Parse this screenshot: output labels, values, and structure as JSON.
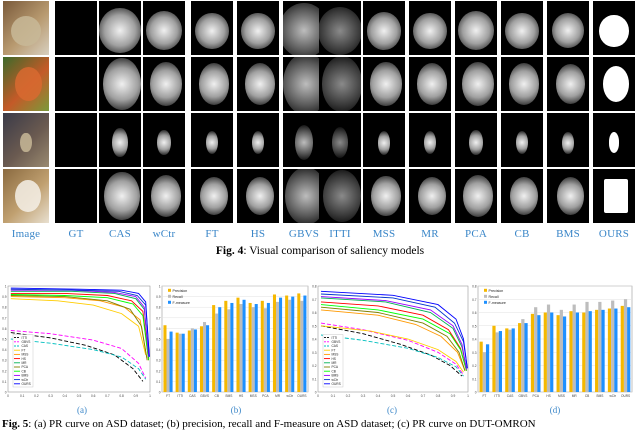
{
  "figure4": {
    "columns": [
      "Image",
      "GT",
      "CAS",
      "wCtr",
      "FT",
      "HS",
      "GBVS",
      "ITTI",
      "MSS",
      "MR",
      "PCA",
      "CB",
      "BMS",
      "OURS"
    ],
    "caption_label": "Fig. 4",
    "caption_text": ": Visual comparison of saliency models"
  },
  "figure5": {
    "subfigure_labels": [
      "(a)",
      "(b)",
      "(c)",
      "(d)"
    ],
    "caption_label": "Fig. 5",
    "caption_text": ": (a) PR curve on ASD dataset; (b) precision, recall and F-measure on ASD dataset; (c) PR curve on DUT-OMRON"
  },
  "chart_data": [
    {
      "type": "line",
      "id": "a",
      "x_ticks": [
        "0",
        "0.1",
        "0.2",
        "0.3",
        "0.4",
        "0.5",
        "0.6",
        "0.7",
        "0.8",
        "0.9",
        "1"
      ],
      "y_ticks": [
        "0",
        "0.1",
        "0.2",
        "0.3",
        "0.4",
        "0.5",
        "0.6",
        "0.7",
        "0.8",
        "0.9",
        "1"
      ],
      "xlim": [
        0,
        1
      ],
      "ylim": [
        0,
        1
      ],
      "legend_position": "bottom-left",
      "series": [
        {
          "name": "ITTI",
          "color": "#000000",
          "dash": "4,2",
          "values": [
            [
              0.02,
              0.56
            ],
            [
              0.3,
              0.51
            ],
            [
              0.55,
              0.44
            ],
            [
              0.75,
              0.35
            ],
            [
              0.88,
              0.22
            ],
            [
              0.95,
              0.1
            ]
          ]
        },
        {
          "name": "GBVS",
          "color": "#ff00ff",
          "dash": "4,2",
          "values": [
            [
              0.02,
              0.58
            ],
            [
              0.3,
              0.55
            ],
            [
              0.6,
              0.49
            ],
            [
              0.8,
              0.41
            ],
            [
              0.92,
              0.27
            ],
            [
              0.97,
              0.13
            ]
          ]
        },
        {
          "name": "CAS",
          "color": "#00bfbf",
          "dash": "4,2",
          "values": [
            [
              0.02,
              0.5
            ],
            [
              0.3,
              0.46
            ],
            [
              0.6,
              0.4
            ],
            [
              0.8,
              0.33
            ],
            [
              0.92,
              0.22
            ],
            [
              0.97,
              0.12
            ]
          ]
        },
        {
          "name": "FT",
          "color": "#ffcc00",
          "dash": "",
          "values": [
            [
              0.02,
              0.88
            ],
            [
              0.35,
              0.86
            ],
            [
              0.6,
              0.82
            ],
            [
              0.8,
              0.74
            ],
            [
              0.92,
              0.62
            ],
            [
              0.97,
              0.35
            ]
          ]
        },
        {
          "name": "MSS",
          "color": "#ff9900",
          "dash": "",
          "values": [
            [
              0.02,
              0.9
            ],
            [
              0.4,
              0.89
            ],
            [
              0.65,
              0.86
            ],
            [
              0.82,
              0.8
            ],
            [
              0.93,
              0.68
            ],
            [
              0.98,
              0.3
            ]
          ]
        },
        {
          "name": "HS",
          "color": "#ff0000",
          "dash": "",
          "values": [
            [
              0.02,
              0.93
            ],
            [
              0.4,
              0.93
            ],
            [
              0.7,
              0.91
            ],
            [
              0.87,
              0.86
            ],
            [
              0.95,
              0.76
            ],
            [
              0.99,
              0.3
            ]
          ]
        },
        {
          "name": "MR",
          "color": "#00b050",
          "dash": "",
          "values": [
            [
              0.02,
              0.95
            ],
            [
              0.45,
              0.95
            ],
            [
              0.75,
              0.93
            ],
            [
              0.9,
              0.88
            ],
            [
              0.96,
              0.78
            ],
            [
              0.99,
              0.32
            ]
          ]
        },
        {
          "name": "PCA",
          "color": "#7f7f00",
          "dash": "",
          "values": [
            [
              0.02,
              0.91
            ],
            [
              0.4,
              0.9
            ],
            [
              0.7,
              0.86
            ],
            [
              0.86,
              0.78
            ],
            [
              0.94,
              0.62
            ],
            [
              0.98,
              0.3
            ]
          ]
        },
        {
          "name": "CB",
          "color": "#00ff00",
          "dash": "",
          "values": [
            [
              0.02,
              0.92
            ],
            [
              0.4,
              0.91
            ],
            [
              0.7,
              0.89
            ],
            [
              0.88,
              0.83
            ],
            [
              0.95,
              0.72
            ],
            [
              0.99,
              0.3
            ]
          ]
        },
        {
          "name": "BMS",
          "color": "#9900ff",
          "dash": "",
          "values": [
            [
              0.02,
              0.96
            ],
            [
              0.45,
              0.96
            ],
            [
              0.75,
              0.94
            ],
            [
              0.9,
              0.9
            ],
            [
              0.96,
              0.8
            ],
            [
              0.99,
              0.33
            ]
          ]
        },
        {
          "name": "wCtr",
          "color": "#0033cc",
          "dash": "",
          "values": [
            [
              0.02,
              0.97
            ],
            [
              0.5,
              0.96
            ],
            [
              0.78,
              0.95
            ],
            [
              0.91,
              0.91
            ],
            [
              0.97,
              0.82
            ],
            [
              0.995,
              0.33
            ]
          ]
        },
        {
          "name": "OURS",
          "color": "#0000ff",
          "dash": "",
          "values": [
            [
              0.02,
              0.98
            ],
            [
              0.5,
              0.97
            ],
            [
              0.8,
              0.96
            ],
            [
              0.92,
              0.93
            ],
            [
              0.97,
              0.85
            ],
            [
              0.995,
              0.34
            ]
          ]
        }
      ]
    },
    {
      "type": "bar",
      "id": "b",
      "categories": [
        "FT",
        "ITTI",
        "CAS",
        "GBVS",
        "CB",
        "BMS",
        "HS",
        "MSS",
        "PCA",
        "MR",
        "wCtr",
        "OURS"
      ],
      "ylim": [
        0,
        1
      ],
      "y_ticks": [
        "0",
        "0.1",
        "0.2",
        "0.3",
        "0.4",
        "0.5",
        "0.6",
        "0.7",
        "0.8",
        "0.9",
        "1"
      ],
      "legend_position": "top-left",
      "series": [
        {
          "name": "Precision",
          "color": "#f5b800",
          "values": [
            0.63,
            0.56,
            0.58,
            0.62,
            0.82,
            0.86,
            0.89,
            0.84,
            0.86,
            0.92,
            0.91,
            0.93
          ]
        },
        {
          "name": "Recall",
          "color": "#bdbdbd",
          "values": [
            0.5,
            0.55,
            0.6,
            0.66,
            0.74,
            0.78,
            0.83,
            0.8,
            0.79,
            0.85,
            0.87,
            0.86
          ]
        },
        {
          "name": "F-measure",
          "color": "#1e90ff",
          "values": [
            0.57,
            0.55,
            0.59,
            0.63,
            0.8,
            0.84,
            0.87,
            0.83,
            0.84,
            0.89,
            0.9,
            0.91
          ]
        }
      ]
    },
    {
      "type": "line",
      "id": "c",
      "x_ticks": [
        "0",
        "0.1",
        "0.2",
        "0.3",
        "0.4",
        "0.5",
        "0.6",
        "0.7",
        "0.8",
        "0.9",
        "1"
      ],
      "y_ticks": [
        "0",
        "0.1",
        "0.2",
        "0.3",
        "0.4",
        "0.5",
        "0.6",
        "0.7",
        "0.8"
      ],
      "xlim": [
        0,
        1
      ],
      "ylim": [
        0,
        0.8
      ],
      "legend_position": "bottom-left",
      "series": [
        {
          "name": "ITTI",
          "color": "#000000",
          "dash": "4,2",
          "values": [
            [
              0.02,
              0.5
            ],
            [
              0.3,
              0.44
            ],
            [
              0.55,
              0.36
            ],
            [
              0.75,
              0.28
            ],
            [
              0.88,
              0.2
            ],
            [
              0.96,
              0.12
            ]
          ]
        },
        {
          "name": "GBVS",
          "color": "#ff00ff",
          "dash": "4,2",
          "values": [
            [
              0.02,
              0.52
            ],
            [
              0.3,
              0.47
            ],
            [
              0.6,
              0.39
            ],
            [
              0.8,
              0.3
            ],
            [
              0.92,
              0.21
            ],
            [
              0.97,
              0.13
            ]
          ]
        },
        {
          "name": "CAS",
          "color": "#00bfbf",
          "dash": "4,2",
          "values": [
            [
              0.02,
              0.43
            ],
            [
              0.3,
              0.39
            ],
            [
              0.6,
              0.33
            ],
            [
              0.8,
              0.26
            ],
            [
              0.92,
              0.19
            ],
            [
              0.97,
              0.12
            ]
          ]
        },
        {
          "name": "FT",
          "color": "#ffcc00",
          "dash": "",
          "values": [
            [
              0.02,
              0.5
            ],
            [
              0.35,
              0.46
            ],
            [
              0.6,
              0.4
            ],
            [
              0.8,
              0.32
            ],
            [
              0.92,
              0.23
            ],
            [
              0.97,
              0.15
            ]
          ]
        },
        {
          "name": "MSS",
          "color": "#ff9900",
          "dash": "",
          "values": [
            [
              0.02,
              0.62
            ],
            [
              0.4,
              0.58
            ],
            [
              0.65,
              0.51
            ],
            [
              0.82,
              0.42
            ],
            [
              0.93,
              0.3
            ],
            [
              0.98,
              0.16
            ]
          ]
        },
        {
          "name": "HS",
          "color": "#ff0000",
          "dash": "",
          "values": [
            [
              0.02,
              0.68
            ],
            [
              0.4,
              0.65
            ],
            [
              0.7,
              0.58
            ],
            [
              0.87,
              0.47
            ],
            [
              0.95,
              0.33
            ],
            [
              0.99,
              0.16
            ]
          ]
        },
        {
          "name": "MR",
          "color": "#00b050",
          "dash": "",
          "values": [
            [
              0.02,
              0.71
            ],
            [
              0.45,
              0.68
            ],
            [
              0.75,
              0.6
            ],
            [
              0.9,
              0.48
            ],
            [
              0.96,
              0.34
            ],
            [
              0.99,
              0.17
            ]
          ]
        },
        {
          "name": "PCA",
          "color": "#7f7f00",
          "dash": "",
          "values": [
            [
              0.02,
              0.64
            ],
            [
              0.4,
              0.6
            ],
            [
              0.7,
              0.52
            ],
            [
              0.86,
              0.42
            ],
            [
              0.94,
              0.3
            ],
            [
              0.98,
              0.16
            ]
          ]
        },
        {
          "name": "CB",
          "color": "#00ff00",
          "dash": "",
          "values": [
            [
              0.02,
              0.66
            ],
            [
              0.4,
              0.62
            ],
            [
              0.7,
              0.55
            ],
            [
              0.88,
              0.44
            ],
            [
              0.95,
              0.32
            ],
            [
              0.99,
              0.16
            ]
          ]
        },
        {
          "name": "BMS",
          "color": "#9900ff",
          "dash": "",
          "values": [
            [
              0.02,
              0.72
            ],
            [
              0.45,
              0.69
            ],
            [
              0.75,
              0.62
            ],
            [
              0.9,
              0.5
            ],
            [
              0.96,
              0.36
            ],
            [
              0.99,
              0.17
            ]
          ]
        },
        {
          "name": "wCtr",
          "color": "#0033cc",
          "dash": "",
          "values": [
            [
              0.02,
              0.74
            ],
            [
              0.5,
              0.71
            ],
            [
              0.78,
              0.64
            ],
            [
              0.91,
              0.52
            ],
            [
              0.97,
              0.38
            ],
            [
              0.995,
              0.18
            ]
          ]
        },
        {
          "name": "OURS",
          "color": "#0000ff",
          "dash": "",
          "values": [
            [
              0.02,
              0.76
            ],
            [
              0.5,
              0.73
            ],
            [
              0.8,
              0.66
            ],
            [
              0.92,
              0.55
            ],
            [
              0.97,
              0.4
            ],
            [
              0.995,
              0.18
            ]
          ]
        }
      ]
    },
    {
      "type": "bar",
      "id": "d",
      "categories": [
        "FT",
        "ITTI",
        "CAS",
        "GBVS",
        "PCA",
        "HS",
        "MSS",
        "MR",
        "CB",
        "BMS",
        "wCtr",
        "OURS"
      ],
      "ylim": [
        0,
        0.8
      ],
      "y_ticks": [
        "0",
        "0.1",
        "0.2",
        "0.3",
        "0.4",
        "0.5",
        "0.6",
        "0.7",
        "0.8"
      ],
      "legend_position": "top-left",
      "series": [
        {
          "name": "Precision",
          "color": "#f5b800",
          "values": [
            0.38,
            0.5,
            0.48,
            0.52,
            0.59,
            0.6,
            0.58,
            0.61,
            0.6,
            0.62,
            0.63,
            0.65
          ]
        },
        {
          "name": "Recall",
          "color": "#bdbdbd",
          "values": [
            0.3,
            0.45,
            0.47,
            0.55,
            0.64,
            0.66,
            0.62,
            0.66,
            0.68,
            0.68,
            0.69,
            0.7
          ]
        },
        {
          "name": "F-measure",
          "color": "#1e90ff",
          "values": [
            0.36,
            0.46,
            0.48,
            0.52,
            0.58,
            0.6,
            0.57,
            0.6,
            0.61,
            0.62,
            0.63,
            0.64
          ]
        }
      ]
    }
  ]
}
